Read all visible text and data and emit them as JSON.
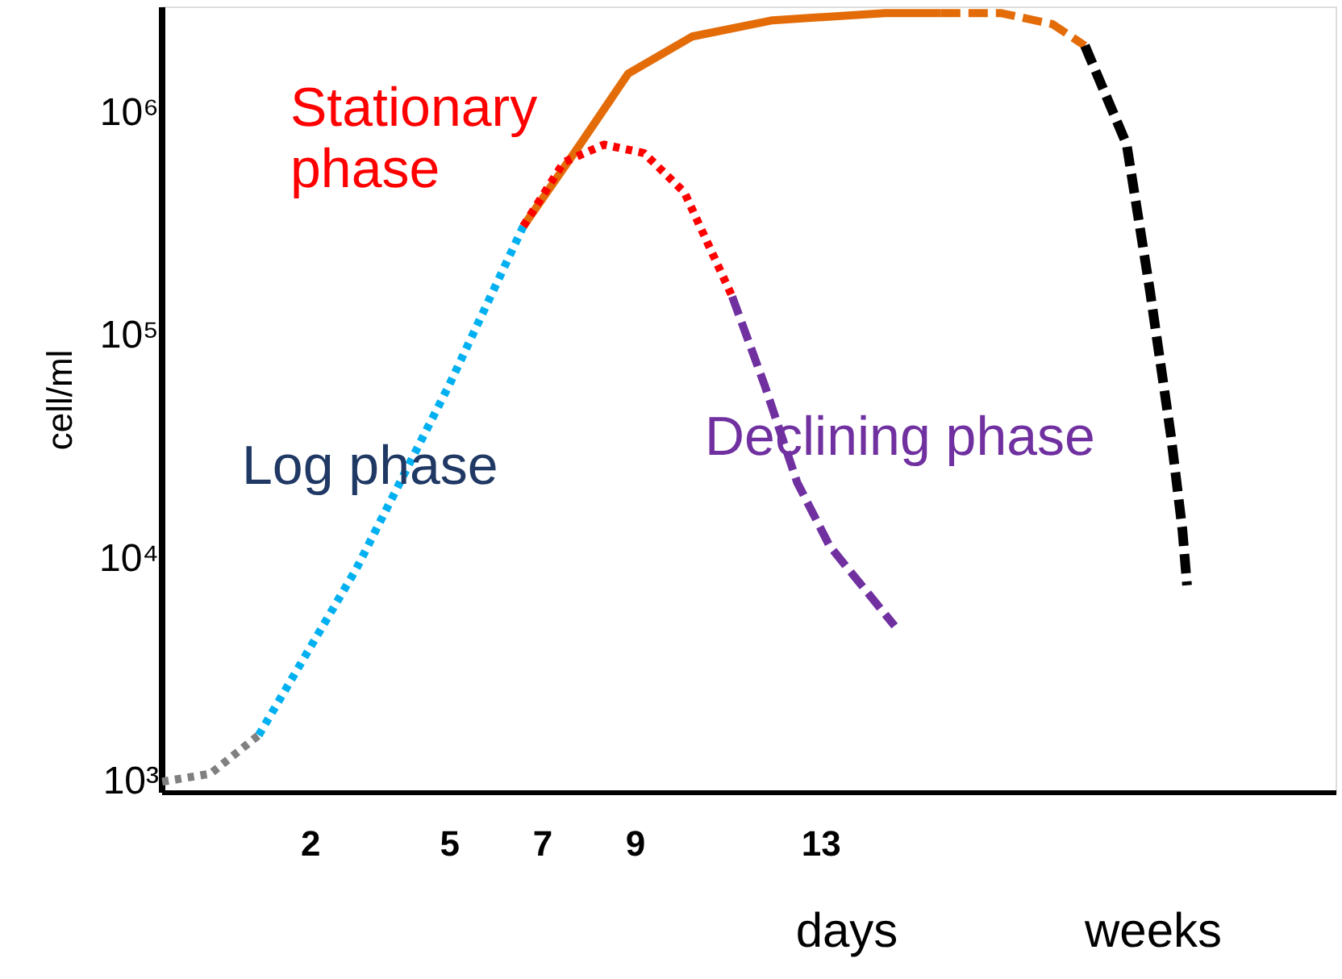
{
  "chart_data": {
    "type": "line",
    "ylabel": "cell/ml",
    "log": "y",
    "xlim": [
      -1.2,
      24.1
    ],
    "xticks": [
      2,
      5,
      7,
      9,
      13
    ],
    "ylim": [
      900,
      3000000
    ],
    "yticks": [
      {
        "value": 1000,
        "label": "10³"
      },
      {
        "value": 10000,
        "label": "10⁴"
      },
      {
        "value": 100000,
        "label": "10⁵"
      },
      {
        "value": 1000000,
        "label": "10⁶"
      }
    ],
    "grid": false,
    "marker": "none",
    "series": [
      {
        "color": "#808080",
        "line_style": "dotted",
        "x": [
          -1.18,
          -0.14,
          0.9
        ],
        "values": [
          1000,
          1086,
          1617
        ]
      },
      {
        "color": "#00b0f0",
        "line_style": "dotted",
        "x": [
          0.9,
          3.0,
          5.0,
          6.6
        ],
        "values": [
          1617,
          9000,
          60000,
          310000
        ]
      },
      {
        "color": "#e36c09",
        "line_style": "solid",
        "x": [
          6.6,
          7.82,
          8.86,
          10.24,
          11.97,
          14.4,
          15.6
        ],
        "values": [
          310000,
          720000,
          1500000,
          2200000,
          2600000,
          2800000,
          2800000
        ]
      },
      {
        "color": "#e36c09",
        "line_style": "dashed",
        "x": [
          15.6,
          16.9,
          18.0,
          18.7
        ],
        "values": [
          2800000,
          2800000,
          2500000,
          2000000
        ]
      },
      {
        "color": "#ff0000",
        "line_style": "dotted",
        "x": [
          6.6,
          7.47,
          8.34,
          9.2,
          10.07,
          11.1
        ],
        "values": [
          310000,
          600000,
          720000,
          660000,
          440000,
          150000
        ]
      },
      {
        "color": "#7030a0",
        "line_style": "dashed",
        "x": [
          11.1,
          11.8,
          12.5,
          13.2,
          14.6
        ],
        "values": [
          150000,
          60000,
          22000,
          11400,
          5000
        ]
      },
      {
        "color": "#000000",
        "line_style": "dashed",
        "x": [
          18.7,
          19.6,
          20.1,
          20.55,
          20.8,
          20.9
        ],
        "values": [
          2000000,
          720000,
          160000,
          36000,
          13500,
          7600
        ]
      }
    ],
    "annotations": [
      "Stationary phase",
      "Log phase",
      "Declining phase",
      "days",
      "weeks"
    ]
  }
}
